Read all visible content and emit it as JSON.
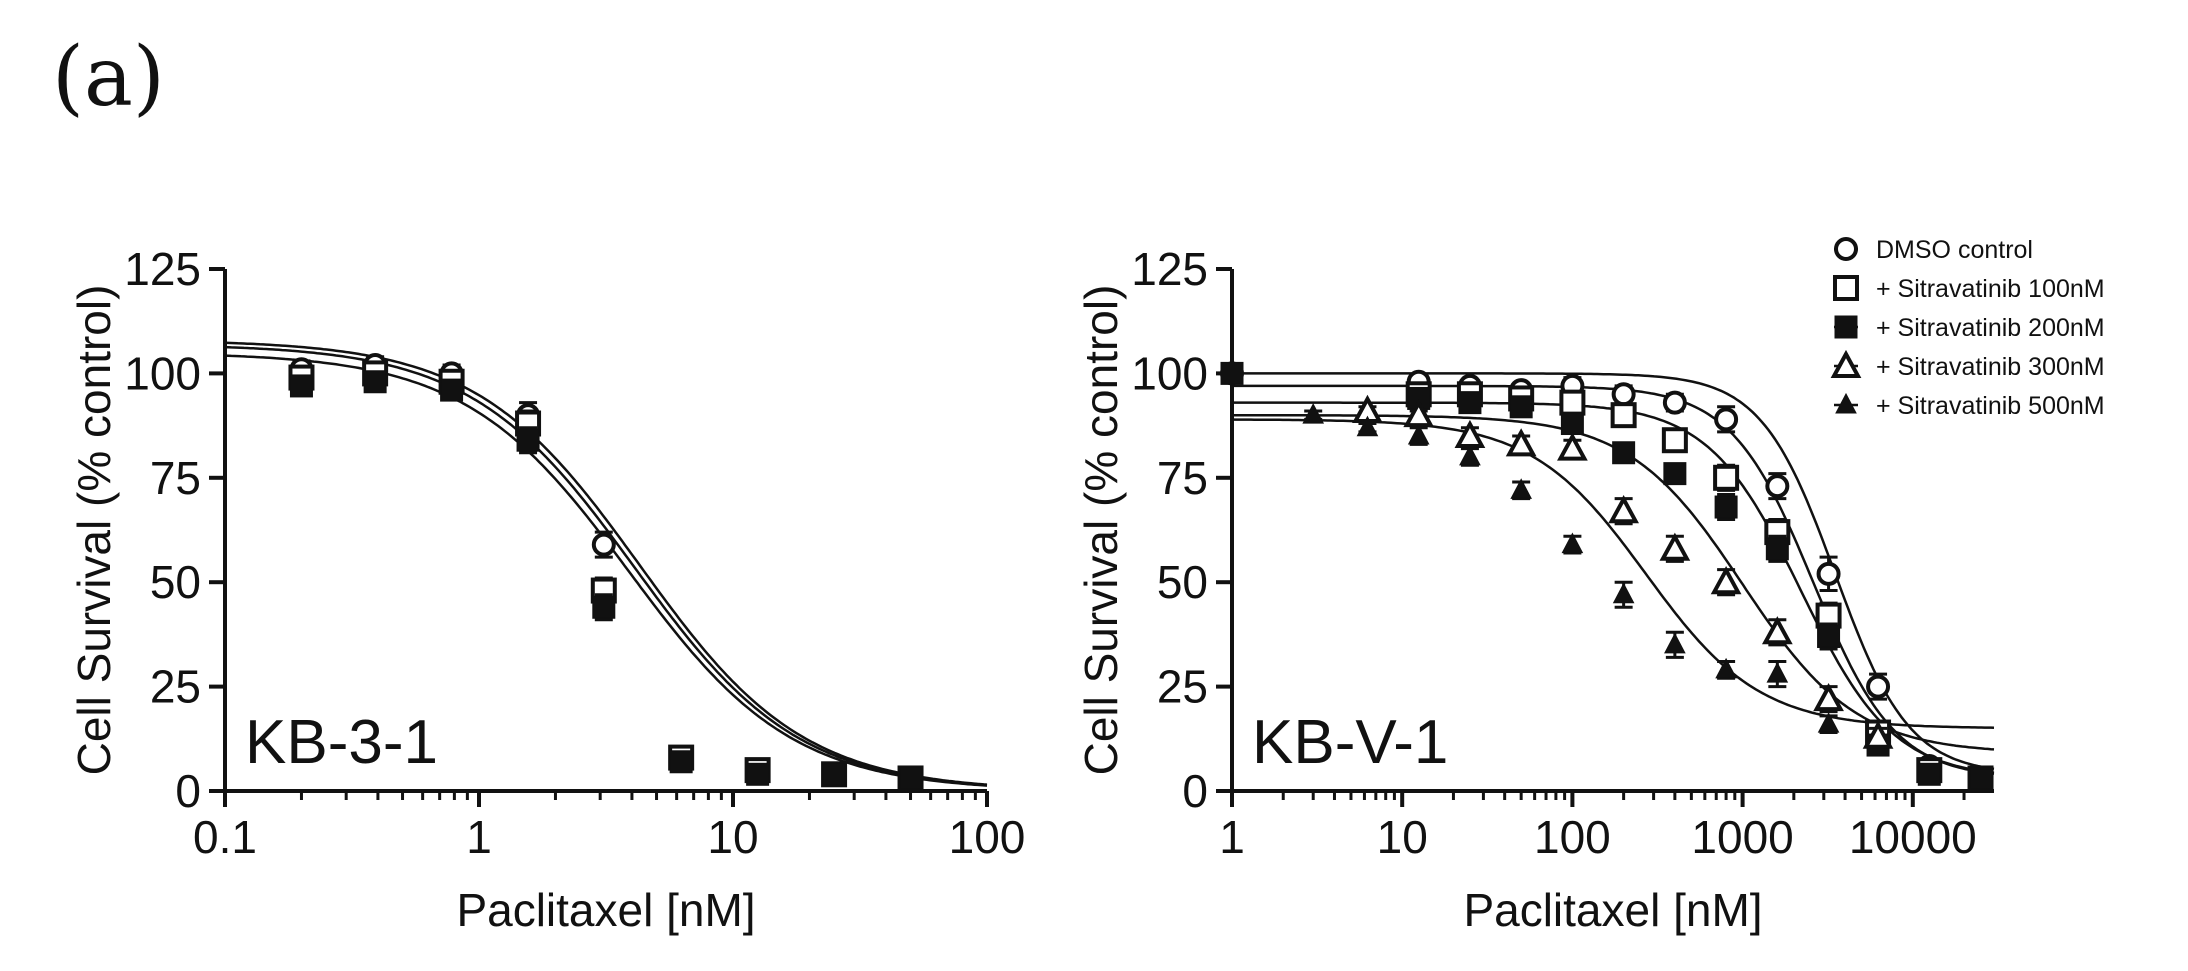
{
  "panel_label": "(a)",
  "chart_data": [
    {
      "type": "scatter",
      "cell_line": "KB-3-1",
      "xlabel": "Paclitaxel [nM]",
      "ylabel": "Cell Survival (% control)",
      "xscale": "log",
      "xlim": [
        0.1,
        100
      ],
      "ylim": [
        0,
        125
      ],
      "x_ticks": [
        0.1,
        1,
        10,
        100
      ],
      "x_tick_labels": [
        "0.1",
        "1",
        "10",
        "100"
      ],
      "y_ticks": [
        0,
        25,
        50,
        75,
        100,
        125
      ],
      "y_tick_labels": [
        "0",
        "25",
        "50",
        "75",
        "100",
        "125"
      ],
      "series": [
        {
          "name": "DMSO control",
          "marker": "circle-open",
          "x": [
            0.2,
            0.39,
            0.78,
            1.56,
            3.1,
            6.25,
            12.5,
            25,
            50
          ],
          "y": [
            101,
            102,
            100,
            90,
            59,
            8,
            5,
            4,
            3
          ],
          "err": [
            2,
            2,
            2,
            3,
            3,
            1,
            1,
            1,
            1
          ],
          "fit": {
            "top": 108,
            "bottom": 0,
            "ic50": 4.3,
            "hill": 1.35
          }
        },
        {
          "name": "+ Sitravatinib 100nM",
          "marker": "square-open",
          "x": [
            0.2,
            0.39,
            0.78,
            1.56,
            3.1,
            6.25,
            12.5,
            25,
            50
          ],
          "y": [
            99,
            100,
            98,
            88,
            48,
            8,
            5,
            4,
            3
          ],
          "err": [
            2,
            2,
            2,
            3,
            3,
            1,
            1,
            1,
            1
          ],
          "fit": {
            "top": 107,
            "bottom": 0,
            "ic50": 4.1,
            "hill": 1.35
          }
        },
        {
          "name": "+ Sitravatinib 200nM",
          "marker": "square-filled",
          "x": [
            0.2,
            0.39,
            0.78,
            1.56,
            3.1,
            6.25,
            12.5,
            25,
            50
          ],
          "y": [
            97,
            98,
            96,
            84,
            44,
            7,
            4,
            4,
            3
          ],
          "err": [
            2,
            2,
            2,
            3,
            3,
            1,
            1,
            1,
            1
          ],
          "fit": {
            "top": 105,
            "bottom": 0,
            "ic50": 3.9,
            "hill": 1.35
          }
        }
      ],
      "annotation": "KB-3-1"
    },
    {
      "type": "scatter",
      "cell_line": "KB-V-1",
      "xlabel": "Paclitaxel [nM]",
      "ylabel": "Cell Survival (% control)",
      "xscale": "log",
      "xlim": [
        1,
        30000
      ],
      "ylim": [
        0,
        125
      ],
      "x_ticks": [
        1,
        10,
        100,
        1000,
        10000
      ],
      "x_tick_labels": [
        "1",
        "10",
        "100",
        "1000",
        "10000"
      ],
      "y_ticks": [
        0,
        25,
        50,
        75,
        100,
        125
      ],
      "y_tick_labels": [
        "0",
        "25",
        "50",
        "75",
        "100",
        "125"
      ],
      "legend_position": "top-right",
      "series": [
        {
          "name": "DMSO control",
          "marker": "circle-open",
          "x": [
            1,
            12.5,
            25,
            50,
            100,
            200,
            400,
            800,
            1600,
            3200,
            6250,
            12500,
            25000
          ],
          "y": [
            100,
            98,
            97,
            96,
            97,
            95,
            93,
            89,
            73,
            52,
            25,
            6,
            3
          ],
          "err": [
            0,
            1,
            1,
            1,
            2,
            2,
            2,
            3,
            3,
            4,
            3,
            1,
            1
          ],
          "fit": {
            "top": 100,
            "bottom": 4,
            "ic50": 3500,
            "hill": 2.0
          }
        },
        {
          "name": "+ Sitravatinib 100nM",
          "marker": "square-open",
          "x": [
            12.5,
            25,
            50,
            100,
            200,
            400,
            800,
            1600,
            3200,
            6250,
            12500,
            25000
          ],
          "y": [
            95,
            95,
            94,
            93,
            90,
            84,
            75,
            62,
            42,
            14,
            5,
            3
          ],
          "err": [
            1,
            1,
            1,
            2,
            2,
            2,
            3,
            3,
            3,
            2,
            1,
            1
          ],
          "fit": {
            "top": 97,
            "bottom": 3,
            "ic50": 2600,
            "hill": 1.8
          }
        },
        {
          "name": "+ Sitravatinib 200nM",
          "marker": "square-filled",
          "x": [
            1,
            12.5,
            25,
            50,
            100,
            200,
            400,
            800,
            1600,
            3200,
            6250,
            12500,
            25000
          ],
          "y": [
            100,
            94,
            93,
            92,
            88,
            81,
            76,
            68,
            58,
            37,
            11,
            4,
            3
          ],
          "err": [
            0,
            1,
            1,
            1,
            2,
            2,
            2,
            3,
            3,
            3,
            2,
            1,
            1
          ],
          "fit": {
            "top": 93,
            "bottom": 3,
            "ic50": 2200,
            "hill": 1.6
          }
        },
        {
          "name": "+ Sitravatinib 300nM",
          "marker": "triangle-open",
          "x": [
            6.25,
            12.5,
            25,
            50,
            100,
            200,
            400,
            800,
            1600,
            3200,
            6250
          ],
          "y": [
            91,
            90,
            85,
            83,
            82,
            67,
            58,
            50,
            38,
            22,
            13
          ],
          "err": [
            1,
            1,
            2,
            2,
            2,
            3,
            3,
            3,
            3,
            3,
            2
          ],
          "fit": {
            "top": 90,
            "bottom": 9,
            "ic50": 1000,
            "hill": 1.3
          }
        },
        {
          "name": "+ Sitravatinib 500nM",
          "marker": "triangle-filled",
          "x": [
            3,
            6.25,
            12.5,
            25,
            50,
            100,
            200,
            400,
            800,
            1600,
            3200
          ],
          "y": [
            90,
            87,
            85,
            80,
            72,
            59,
            47,
            35,
            29,
            28,
            16
          ],
          "err": [
            1,
            1,
            2,
            2,
            2,
            2,
            3,
            3,
            2,
            3,
            2
          ],
          "fit": {
            "top": 89,
            "bottom": 15,
            "ic50": 270,
            "hill": 1.3
          }
        }
      ],
      "annotation": "KB-V-1"
    }
  ]
}
